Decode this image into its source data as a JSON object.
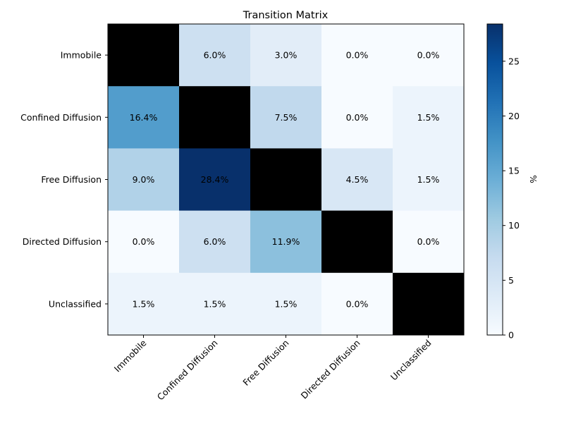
{
  "chart_data": {
    "type": "heatmap",
    "title": "Transition Matrix",
    "rows": [
      "Immobile",
      "Confined Diffusion",
      "Free Diffusion",
      "Directed Diffusion",
      "Unclassified"
    ],
    "cols": [
      "Immobile",
      "Confined Diffusion",
      "Free Diffusion",
      "Directed Diffusion",
      "Unclassified"
    ],
    "values": [
      [
        null,
        6.0,
        3.0,
        0.0,
        0.0
      ],
      [
        16.4,
        null,
        7.5,
        0.0,
        1.5
      ],
      [
        9.0,
        28.4,
        null,
        4.5,
        1.5
      ],
      [
        0.0,
        6.0,
        11.9,
        null,
        0.0
      ],
      [
        1.5,
        1.5,
        1.5,
        0.0,
        null
      ]
    ],
    "cell_labels": [
      [
        "",
        "6.0%",
        "3.0%",
        "0.0%",
        "0.0%"
      ],
      [
        "16.4%",
        "",
        "7.5%",
        "0.0%",
        "1.5%"
      ],
      [
        "9.0%",
        "28.4%",
        "",
        "4.5%",
        "1.5%"
      ],
      [
        "0.0%",
        "6.0%",
        "11.9%",
        "",
        "0.0%"
      ],
      [
        "1.5%",
        "1.5%",
        "1.5%",
        "0.0%",
        ""
      ]
    ],
    "diagonal_color": "#000000",
    "colormap": "Blues",
    "colorbar": {
      "label": "%",
      "min": 0,
      "max": 28.4,
      "ticks": [
        0,
        5,
        10,
        15,
        20,
        25
      ],
      "tick_labels": [
        "0",
        "5",
        "10",
        "15",
        "20",
        "25"
      ]
    }
  }
}
